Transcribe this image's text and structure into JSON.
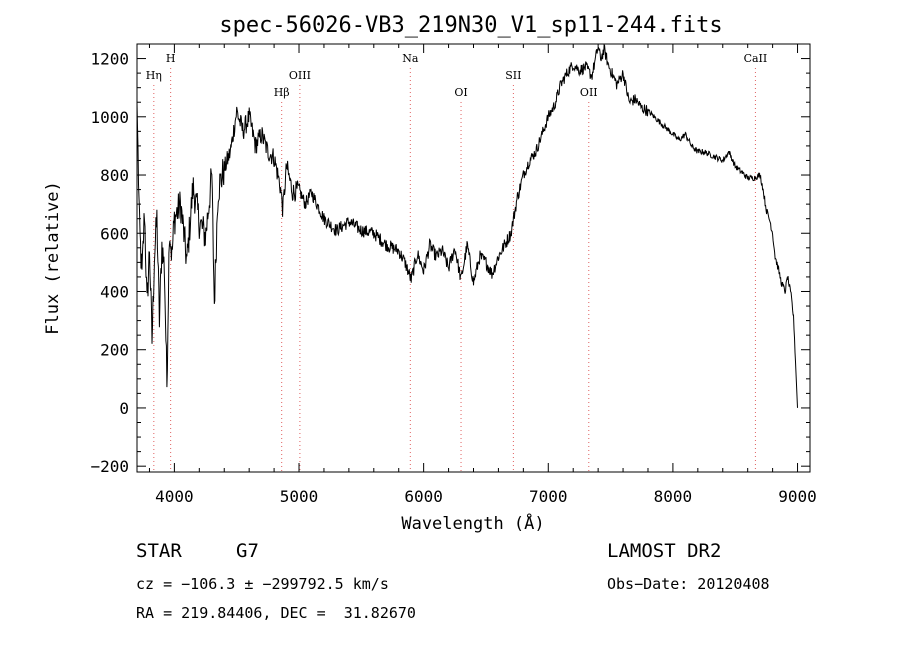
{
  "chart_data": {
    "type": "line",
    "title": "spec-56026-VB3_219N30_V1_sp11-244.fits",
    "xlabel": "Wavelength (Å)",
    "ylabel": "Flux (relative)",
    "xlim": [
      3700,
      9100
    ],
    "ylim": [
      -220,
      1250
    ],
    "x_ticks": [
      4000,
      5000,
      6000,
      7000,
      8000,
      9000
    ],
    "y_ticks": [
      -200,
      0,
      200,
      400,
      600,
      800,
      1000,
      1200
    ],
    "grid": false,
    "series": [
      {
        "x": [
          3700,
          3720,
          3740,
          3760,
          3780,
          3800,
          3820,
          3840,
          3860,
          3880,
          3900,
          3920,
          3940,
          3960,
          3980,
          4000,
          4050,
          4100,
          4150,
          4200,
          4250,
          4300,
          4320,
          4350,
          4400,
          4450,
          4500,
          4550,
          4600,
          4650,
          4700,
          4750,
          4800,
          4850,
          4870,
          4900,
          4950,
          5000,
          5050,
          5100,
          5200,
          5300,
          5400,
          5500,
          5600,
          5700,
          5800,
          5850,
          5900,
          5950,
          6000,
          6050,
          6100,
          6150,
          6200,
          6250,
          6300,
          6350,
          6400,
          6450,
          6500,
          6550,
          6600,
          6650,
          6700,
          6750,
          6800,
          6850,
          6900,
          6950,
          7000,
          7050,
          7100,
          7150,
          7200,
          7250,
          7300,
          7350,
          7400,
          7420,
          7450,
          7480,
          7500,
          7550,
          7600,
          7650,
          7700,
          7750,
          7800,
          7850,
          7900,
          7950,
          8000,
          8050,
          8100,
          8150,
          8200,
          8250,
          8300,
          8350,
          8400,
          8450,
          8500,
          8550,
          8600,
          8650,
          8700,
          8720,
          8750,
          8780,
          8800,
          8820,
          8850,
          8870,
          8900,
          8920,
          8950,
          8970,
          9000
        ],
        "y": [
          1050,
          620,
          450,
          680,
          350,
          550,
          230,
          520,
          650,
          300,
          560,
          480,
          80,
          620,
          520,
          650,
          700,
          500,
          760,
          640,
          590,
          800,
          360,
          750,
          820,
          880,
          1020,
          950,
          1000,
          900,
          940,
          880,
          860,
          760,
          680,
          830,
          740,
          750,
          700,
          740,
          650,
          610,
          640,
          610,
          600,
          560,
          540,
          500,
          440,
          530,
          470,
          560,
          520,
          540,
          480,
          550,
          440,
          560,
          430,
          520,
          500,
          460,
          520,
          560,
          600,
          720,
          800,
          850,
          880,
          940,
          1000,
          1040,
          1110,
          1150,
          1180,
          1160,
          1170,
          1140,
          1240,
          1200,
          1230,
          1180,
          1160,
          1110,
          1150,
          1050,
          1060,
          1030,
          1020,
          1000,
          980,
          960,
          940,
          920,
          940,
          900,
          880,
          880,
          870,
          860,
          850,
          880,
          830,
          810,
          790,
          790,
          800,
          760,
          680,
          640,
          600,
          520,
          470,
          430,
          400,
          450,
          380,
          300,
          0
        ]
      }
    ],
    "lines": [
      {
        "label": "Hη",
        "x": 3835,
        "row": 2
      },
      {
        "label": "H",
        "x": 3970,
        "row": 1
      },
      {
        "label": "Hβ",
        "x": 4861,
        "row": 3
      },
      {
        "label": "OIII",
        "x": 5007,
        "row": 2
      },
      {
        "label": "Na",
        "x": 5893,
        "row": 1
      },
      {
        "label": "OI",
        "x": 6300,
        "row": 3
      },
      {
        "label": "SII",
        "x": 6720,
        "row": 2
      },
      {
        "label": "OII",
        "x": 7325,
        "row": 3
      },
      {
        "label": "CaII",
        "x": 8662,
        "row": 1
      }
    ],
    "line_color": "#e06060"
  },
  "footer": {
    "object_class": "STAR",
    "subclass": "G7",
    "survey": "LAMOST DR2",
    "cz": "cz = −106.3 ± −299792.5 km/s",
    "obs_date": "Obs−Date: 20120408",
    "coords": "RA = 219.84406, DEC =  31.82670"
  }
}
